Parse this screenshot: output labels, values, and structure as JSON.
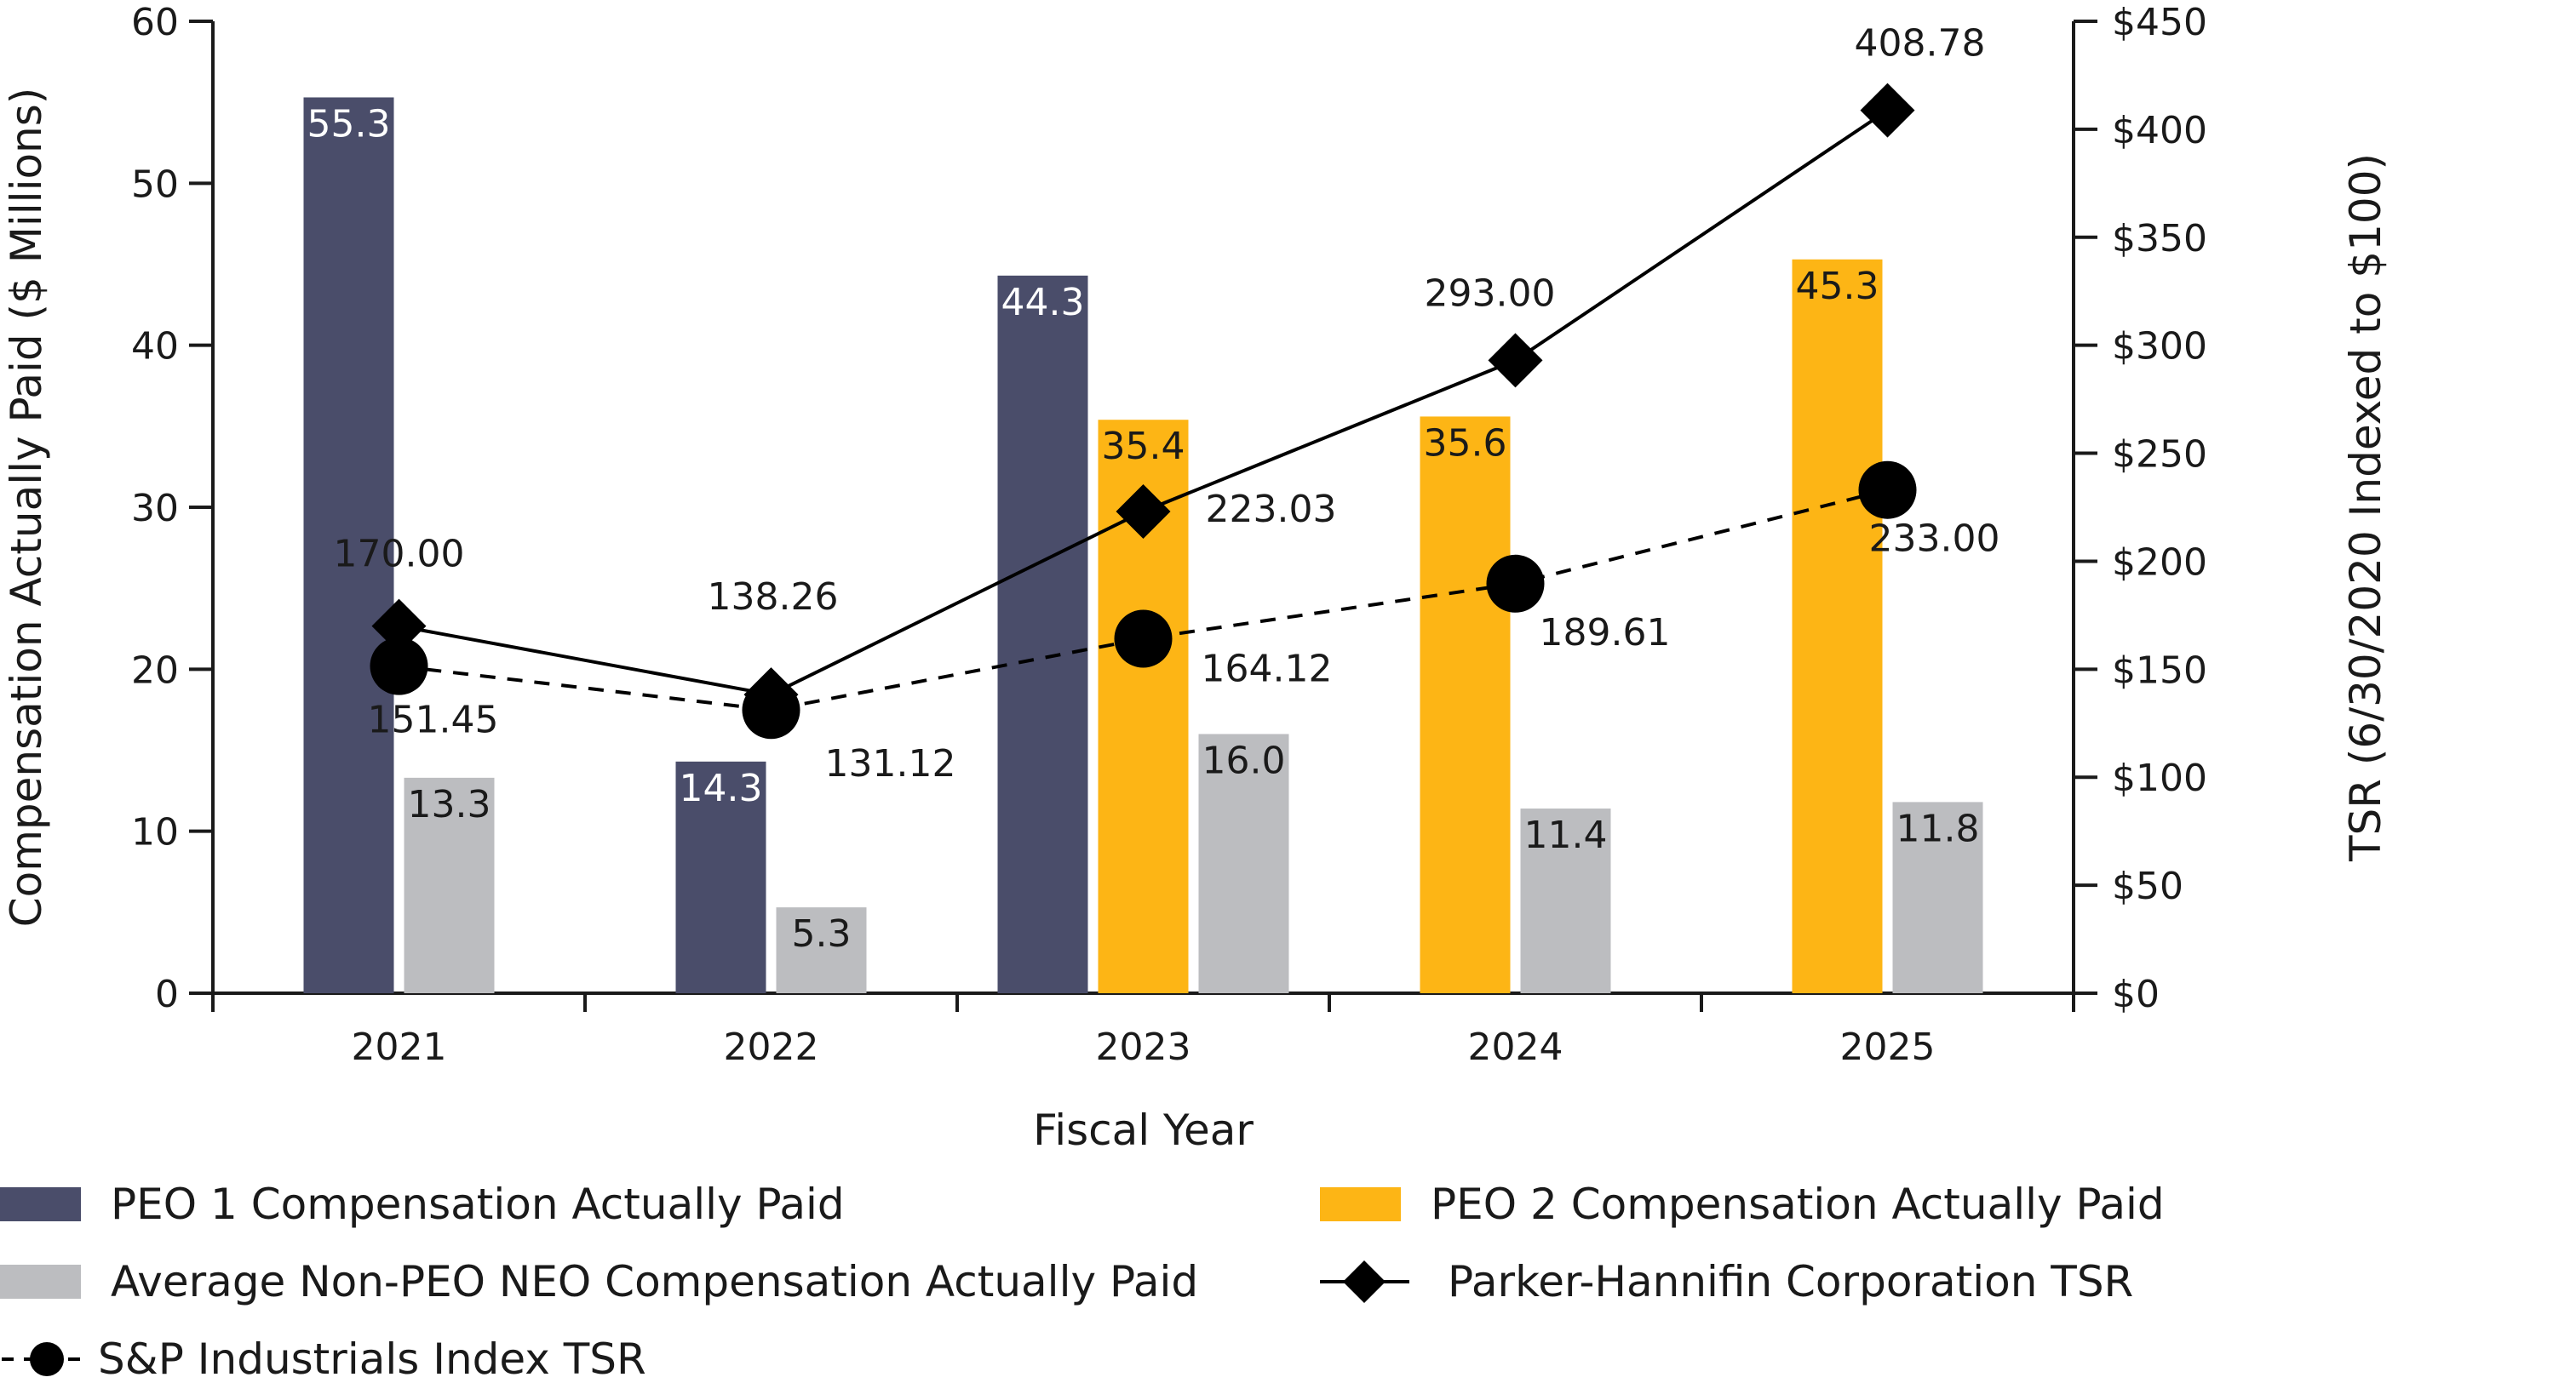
{
  "chart_data": {
    "type": "bar",
    "xlabel": "Fiscal Year",
    "ylabel_left": "Compensation Actually Paid ($ Millions)",
    "ylabel_right": "TSR (6/30/2020 Indexed to $100)",
    "categories": [
      "2021",
      "2022",
      "2023",
      "2024",
      "2025"
    ],
    "y_left": {
      "min": 0,
      "max": 60,
      "ticks": [
        "0",
        "10",
        "20",
        "30",
        "40",
        "50",
        "60"
      ]
    },
    "y_right": {
      "min": 0,
      "max": 450,
      "ticks": [
        "$0",
        "$50",
        "$100",
        "$150",
        "$200",
        "$250",
        "$300",
        "$350",
        "$400",
        "$450"
      ]
    },
    "bar_series": [
      {
        "name": "PEO 1 Compensation Actually Paid",
        "color": "#4a4d6a",
        "label_color": "#ffffff",
        "values": [
          55.3,
          14.3,
          44.3,
          null,
          null
        ],
        "labels": [
          "55.3",
          "14.3",
          "44.3",
          "",
          ""
        ]
      },
      {
        "name": "PEO 2 Compensation Actually Paid",
        "color": "#fdb515",
        "label_color": "#1a1a1a",
        "values": [
          null,
          null,
          35.4,
          35.6,
          45.3
        ],
        "labels": [
          "",
          "",
          "35.4",
          "35.6",
          "45.3"
        ]
      },
      {
        "name": "Average Non-PEO NEO Compensation Actually Paid",
        "color": "#bcbdc0",
        "label_color": "#1a1a1a",
        "values": [
          13.3,
          5.3,
          16.0,
          11.4,
          11.8
        ],
        "labels": [
          "13.3",
          "5.3",
          "16.0",
          "11.4",
          "11.8"
        ]
      }
    ],
    "line_series": [
      {
        "name": "Parker-Hannifin Corporation TSR",
        "marker": "diamond",
        "style": "solid",
        "color": "#000000",
        "values": [
          170.0,
          138.26,
          223.03,
          293.0,
          408.78
        ],
        "labels": [
          "170.00",
          "138.26",
          "223.03",
          "293.00",
          "408.78"
        ]
      },
      {
        "name": "S&P Industrials Index TSR",
        "marker": "circle",
        "style": "dashed",
        "color": "#000000",
        "values": [
          151.45,
          131.12,
          164.12,
          189.61,
          233.0
        ],
        "labels": [
          "151.45",
          "131.12",
          "164.12",
          "189.61",
          "233.00"
        ]
      }
    ],
    "legend_placement": "bottom",
    "grid": false
  }
}
